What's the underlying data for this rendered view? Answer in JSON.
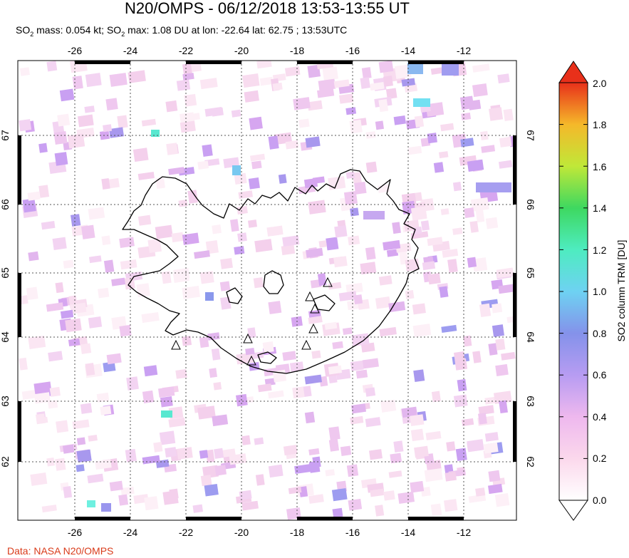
{
  "title": "N20/OMPS - 06/12/2018 13:53-13:55 UT",
  "subtitle": {
    "mass_prefix": "SO",
    "mass_sub": "2",
    "mass_text": " mass: 0.054 kt; SO",
    "max_sub": "2",
    "max_text": " max: 1.08 DU at lon: -22.64 lat: 62.75 ; 13:53UTC"
  },
  "credit": "Data: NASA N20/OMPS",
  "map": {
    "lon_ticks": [
      "-26",
      "-24",
      "-22",
      "-20",
      "-18",
      "-16",
      "-14",
      "-12"
    ],
    "lat_ticks": [
      "67",
      "66",
      "65",
      "64",
      "63",
      "62"
    ],
    "volcano_markers": 8
  },
  "colorbar": {
    "label": "SO2 column TRM [DU]",
    "ticks": [
      "2.0",
      "1.8",
      "1.6",
      "1.4",
      "1.2",
      "1.0",
      "0.8",
      "0.6",
      "0.4",
      "0.2",
      "0.0"
    ],
    "colors": [
      "#ffffff",
      "#fce4f0",
      "#e8b8ec",
      "#b89cf0",
      "#8a8ee8",
      "#6ee0f0",
      "#3ee88a",
      "#a6e83a",
      "#f0e83a",
      "#f5a020",
      "#e8301a"
    ]
  }
}
